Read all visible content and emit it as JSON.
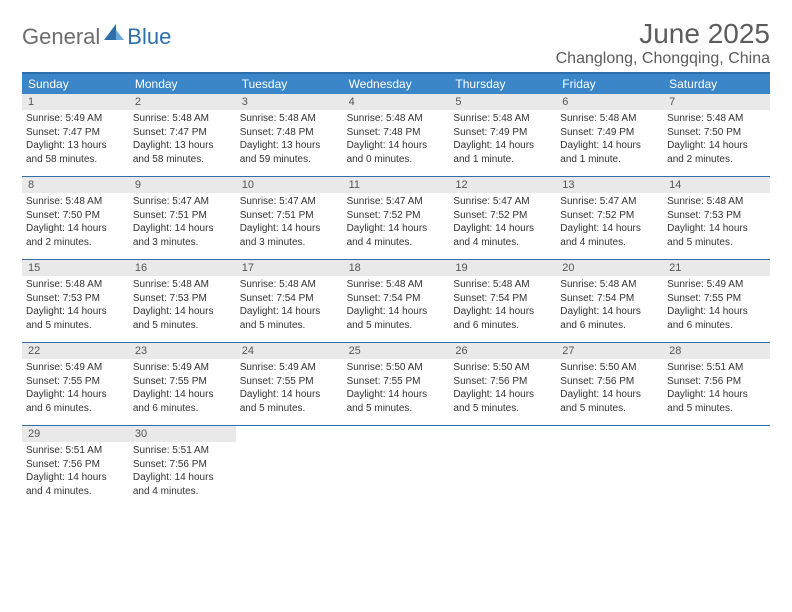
{
  "brand": {
    "part1": "General",
    "part2": "Blue"
  },
  "title": "June 2025",
  "location": "Changlong, Chongqing, China",
  "colors": {
    "accent": "#2f6fa9",
    "header_bg": "#3a86c8",
    "daynum_bg": "#e9e9e9",
    "text": "#333333",
    "muted": "#5c5c5c"
  },
  "weekdays": [
    "Sunday",
    "Monday",
    "Tuesday",
    "Wednesday",
    "Thursday",
    "Friday",
    "Saturday"
  ],
  "weeks": [
    [
      {
        "n": "1",
        "sr": "Sunrise: 5:49 AM",
        "ss": "Sunset: 7:47 PM",
        "d1": "Daylight: 13 hours",
        "d2": "and 58 minutes."
      },
      {
        "n": "2",
        "sr": "Sunrise: 5:48 AM",
        "ss": "Sunset: 7:47 PM",
        "d1": "Daylight: 13 hours",
        "d2": "and 58 minutes."
      },
      {
        "n": "3",
        "sr": "Sunrise: 5:48 AM",
        "ss": "Sunset: 7:48 PM",
        "d1": "Daylight: 13 hours",
        "d2": "and 59 minutes."
      },
      {
        "n": "4",
        "sr": "Sunrise: 5:48 AM",
        "ss": "Sunset: 7:48 PM",
        "d1": "Daylight: 14 hours",
        "d2": "and 0 minutes."
      },
      {
        "n": "5",
        "sr": "Sunrise: 5:48 AM",
        "ss": "Sunset: 7:49 PM",
        "d1": "Daylight: 14 hours",
        "d2": "and 1 minute."
      },
      {
        "n": "6",
        "sr": "Sunrise: 5:48 AM",
        "ss": "Sunset: 7:49 PM",
        "d1": "Daylight: 14 hours",
        "d2": "and 1 minute."
      },
      {
        "n": "7",
        "sr": "Sunrise: 5:48 AM",
        "ss": "Sunset: 7:50 PM",
        "d1": "Daylight: 14 hours",
        "d2": "and 2 minutes."
      }
    ],
    [
      {
        "n": "8",
        "sr": "Sunrise: 5:48 AM",
        "ss": "Sunset: 7:50 PM",
        "d1": "Daylight: 14 hours",
        "d2": "and 2 minutes."
      },
      {
        "n": "9",
        "sr": "Sunrise: 5:47 AM",
        "ss": "Sunset: 7:51 PM",
        "d1": "Daylight: 14 hours",
        "d2": "and 3 minutes."
      },
      {
        "n": "10",
        "sr": "Sunrise: 5:47 AM",
        "ss": "Sunset: 7:51 PM",
        "d1": "Daylight: 14 hours",
        "d2": "and 3 minutes."
      },
      {
        "n": "11",
        "sr": "Sunrise: 5:47 AM",
        "ss": "Sunset: 7:52 PM",
        "d1": "Daylight: 14 hours",
        "d2": "and 4 minutes."
      },
      {
        "n": "12",
        "sr": "Sunrise: 5:47 AM",
        "ss": "Sunset: 7:52 PM",
        "d1": "Daylight: 14 hours",
        "d2": "and 4 minutes."
      },
      {
        "n": "13",
        "sr": "Sunrise: 5:47 AM",
        "ss": "Sunset: 7:52 PM",
        "d1": "Daylight: 14 hours",
        "d2": "and 4 minutes."
      },
      {
        "n": "14",
        "sr": "Sunrise: 5:48 AM",
        "ss": "Sunset: 7:53 PM",
        "d1": "Daylight: 14 hours",
        "d2": "and 5 minutes."
      }
    ],
    [
      {
        "n": "15",
        "sr": "Sunrise: 5:48 AM",
        "ss": "Sunset: 7:53 PM",
        "d1": "Daylight: 14 hours",
        "d2": "and 5 minutes."
      },
      {
        "n": "16",
        "sr": "Sunrise: 5:48 AM",
        "ss": "Sunset: 7:53 PM",
        "d1": "Daylight: 14 hours",
        "d2": "and 5 minutes."
      },
      {
        "n": "17",
        "sr": "Sunrise: 5:48 AM",
        "ss": "Sunset: 7:54 PM",
        "d1": "Daylight: 14 hours",
        "d2": "and 5 minutes."
      },
      {
        "n": "18",
        "sr": "Sunrise: 5:48 AM",
        "ss": "Sunset: 7:54 PM",
        "d1": "Daylight: 14 hours",
        "d2": "and 5 minutes."
      },
      {
        "n": "19",
        "sr": "Sunrise: 5:48 AM",
        "ss": "Sunset: 7:54 PM",
        "d1": "Daylight: 14 hours",
        "d2": "and 6 minutes."
      },
      {
        "n": "20",
        "sr": "Sunrise: 5:48 AM",
        "ss": "Sunset: 7:54 PM",
        "d1": "Daylight: 14 hours",
        "d2": "and 6 minutes."
      },
      {
        "n": "21",
        "sr": "Sunrise: 5:49 AM",
        "ss": "Sunset: 7:55 PM",
        "d1": "Daylight: 14 hours",
        "d2": "and 6 minutes."
      }
    ],
    [
      {
        "n": "22",
        "sr": "Sunrise: 5:49 AM",
        "ss": "Sunset: 7:55 PM",
        "d1": "Daylight: 14 hours",
        "d2": "and 6 minutes."
      },
      {
        "n": "23",
        "sr": "Sunrise: 5:49 AM",
        "ss": "Sunset: 7:55 PM",
        "d1": "Daylight: 14 hours",
        "d2": "and 6 minutes."
      },
      {
        "n": "24",
        "sr": "Sunrise: 5:49 AM",
        "ss": "Sunset: 7:55 PM",
        "d1": "Daylight: 14 hours",
        "d2": "and 5 minutes."
      },
      {
        "n": "25",
        "sr": "Sunrise: 5:50 AM",
        "ss": "Sunset: 7:55 PM",
        "d1": "Daylight: 14 hours",
        "d2": "and 5 minutes."
      },
      {
        "n": "26",
        "sr": "Sunrise: 5:50 AM",
        "ss": "Sunset: 7:56 PM",
        "d1": "Daylight: 14 hours",
        "d2": "and 5 minutes."
      },
      {
        "n": "27",
        "sr": "Sunrise: 5:50 AM",
        "ss": "Sunset: 7:56 PM",
        "d1": "Daylight: 14 hours",
        "d2": "and 5 minutes."
      },
      {
        "n": "28",
        "sr": "Sunrise: 5:51 AM",
        "ss": "Sunset: 7:56 PM",
        "d1": "Daylight: 14 hours",
        "d2": "and 5 minutes."
      }
    ],
    [
      {
        "n": "29",
        "sr": "Sunrise: 5:51 AM",
        "ss": "Sunset: 7:56 PM",
        "d1": "Daylight: 14 hours",
        "d2": "and 4 minutes."
      },
      {
        "n": "30",
        "sr": "Sunrise: 5:51 AM",
        "ss": "Sunset: 7:56 PM",
        "d1": "Daylight: 14 hours",
        "d2": "and 4 minutes."
      },
      {
        "empty": true
      },
      {
        "empty": true
      },
      {
        "empty": true
      },
      {
        "empty": true
      },
      {
        "empty": true
      }
    ]
  ]
}
